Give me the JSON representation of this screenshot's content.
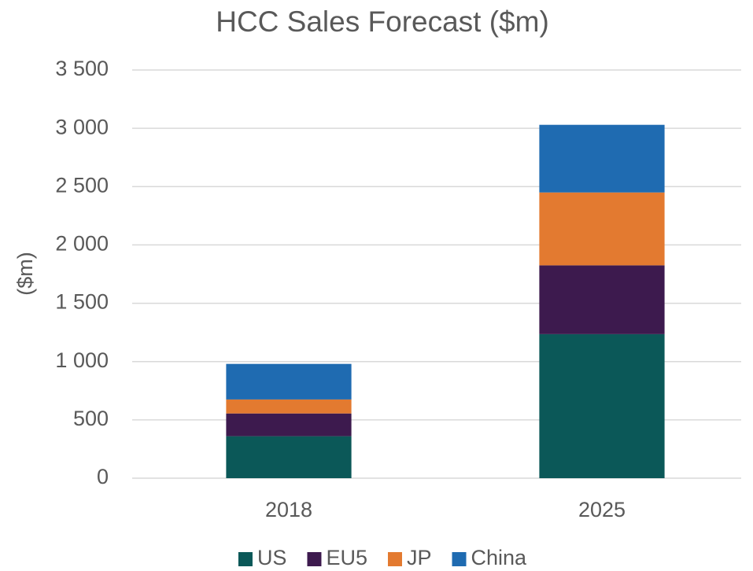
{
  "chart_data": {
    "type": "stacked_bar",
    "title": "HCC Sales Forecast ($m)",
    "ylabel": "($m)",
    "categories": [
      "2018",
      "2025"
    ],
    "series": [
      {
        "name": "US",
        "color": "#0b5858",
        "values": [
          360,
          1235
        ]
      },
      {
        "name": "EU5",
        "color": "#3d1a4e",
        "values": [
          195,
          590
        ]
      },
      {
        "name": "JP",
        "color": "#e37a30",
        "values": [
          120,
          625
        ]
      },
      {
        "name": "China",
        "color": "#1f6bb1",
        "values": [
          305,
          580
        ]
      }
    ],
    "ylim": [
      0,
      3500
    ],
    "yticks": [
      0,
      500,
      {
        "value": 1000,
        "label": "1 000"
      },
      {
        "value": 1500,
        "label": "1 500"
      },
      {
        "value": 2000,
        "label": "2 000"
      },
      {
        "value": 2500,
        "label": "2 500"
      },
      {
        "value": 3000,
        "label": "3 000"
      },
      {
        "value": 3500,
        "label": "3 500"
      }
    ],
    "grid": true,
    "legend": "bottom"
  }
}
